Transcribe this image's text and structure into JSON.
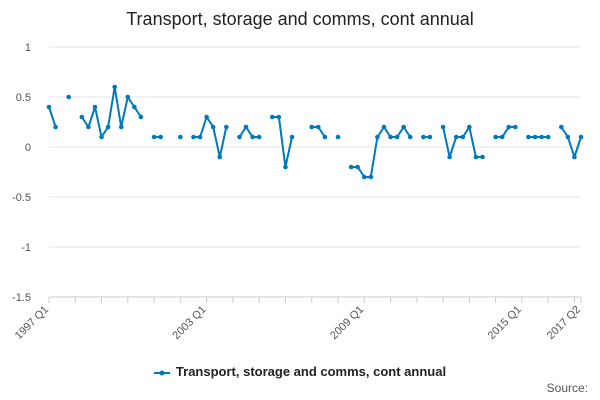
{
  "colors": {
    "series": "#0079bc",
    "grid": "#e6e6e6",
    "axis": "#cccccc",
    "text": "#555555"
  },
  "credits": "Source:",
  "chart_data": {
    "type": "line",
    "title": "Transport, storage and comms, cont annual",
    "xlabel": "",
    "ylabel": "",
    "ylim": [
      -1.5,
      1
    ],
    "yticks": [
      1,
      0.5,
      0,
      -0.5,
      -1,
      -1.5
    ],
    "ytick_labels": [
      "1",
      "0.5",
      "0",
      "-0.5",
      "-1",
      "-1.5"
    ],
    "xtick_labels": [
      {
        "index": 0,
        "label": "1997 Q1"
      },
      {
        "index": 24,
        "label": "2003 Q1"
      },
      {
        "index": 48,
        "label": "2009 Q1"
      },
      {
        "index": 72,
        "label": "2015 Q1"
      },
      {
        "index": 81,
        "label": "2017 Q2"
      }
    ],
    "grid": true,
    "legend_position": "bottom",
    "x": [
      "1997 Q1",
      "1997 Q2",
      "1997 Q3",
      "1997 Q4",
      "1998 Q1",
      "1998 Q2",
      "1998 Q3",
      "1998 Q4",
      "1999 Q1",
      "1999 Q2",
      "1999 Q3",
      "1999 Q4",
      "2000 Q1",
      "2000 Q2",
      "2000 Q3",
      "2000 Q4",
      "2001 Q1",
      "2001 Q2",
      "2001 Q3",
      "2001 Q4",
      "2002 Q1",
      "2002 Q2",
      "2002 Q3",
      "2002 Q4",
      "2003 Q1",
      "2003 Q2",
      "2003 Q3",
      "2003 Q4",
      "2004 Q1",
      "2004 Q2",
      "2004 Q3",
      "2004 Q4",
      "2005 Q1",
      "2005 Q2",
      "2005 Q3",
      "2005 Q4",
      "2006 Q1",
      "2006 Q2",
      "2006 Q3",
      "2006 Q4",
      "2007 Q1",
      "2007 Q2",
      "2007 Q3",
      "2007 Q4",
      "2008 Q1",
      "2008 Q2",
      "2008 Q3",
      "2008 Q4",
      "2009 Q1",
      "2009 Q2",
      "2009 Q3",
      "2009 Q4",
      "2010 Q1",
      "2010 Q2",
      "2010 Q3",
      "2010 Q4",
      "2011 Q1",
      "2011 Q2",
      "2011 Q3",
      "2011 Q4",
      "2012 Q1",
      "2012 Q2",
      "2012 Q3",
      "2012 Q4",
      "2013 Q1",
      "2013 Q2",
      "2013 Q3",
      "2013 Q4",
      "2014 Q1",
      "2014 Q2",
      "2014 Q3",
      "2014 Q4",
      "2015 Q1",
      "2015 Q2",
      "2015 Q3",
      "2015 Q4",
      "2016 Q1",
      "2016 Q2",
      "2016 Q3",
      "2016 Q4",
      "2017 Q1",
      "2017 Q2"
    ],
    "series": [
      {
        "name": "Transport, storage and comms, cont annual",
        "values": [
          0.4,
          0.2,
          null,
          0.5,
          null,
          0.3,
          0.2,
          0.4,
          0.1,
          0.2,
          0.6,
          0.2,
          0.5,
          0.4,
          0.3,
          null,
          0.1,
          0.1,
          null,
          null,
          0.1,
          null,
          0.1,
          0.1,
          0.3,
          0.2,
          -0.1,
          0.2,
          null,
          0.1,
          0.2,
          0.1,
          0.1,
          null,
          0.3,
          0.3,
          -0.2,
          0.1,
          null,
          null,
          0.2,
          0.2,
          0.1,
          null,
          0.1,
          null,
          -0.2,
          -0.2,
          -0.3,
          -0.3,
          0.1,
          0.2,
          0.1,
          0.1,
          0.2,
          0.1,
          null,
          0.1,
          0.1,
          null,
          0.2,
          -0.1,
          0.1,
          0.1,
          0.2,
          -0.1,
          -0.1,
          null,
          0.1,
          0.1,
          0.2,
          0.2,
          null,
          0.1,
          0.1,
          0.1,
          0.1,
          null,
          0.2,
          0.1,
          -0.1,
          0.1
        ]
      }
    ]
  }
}
